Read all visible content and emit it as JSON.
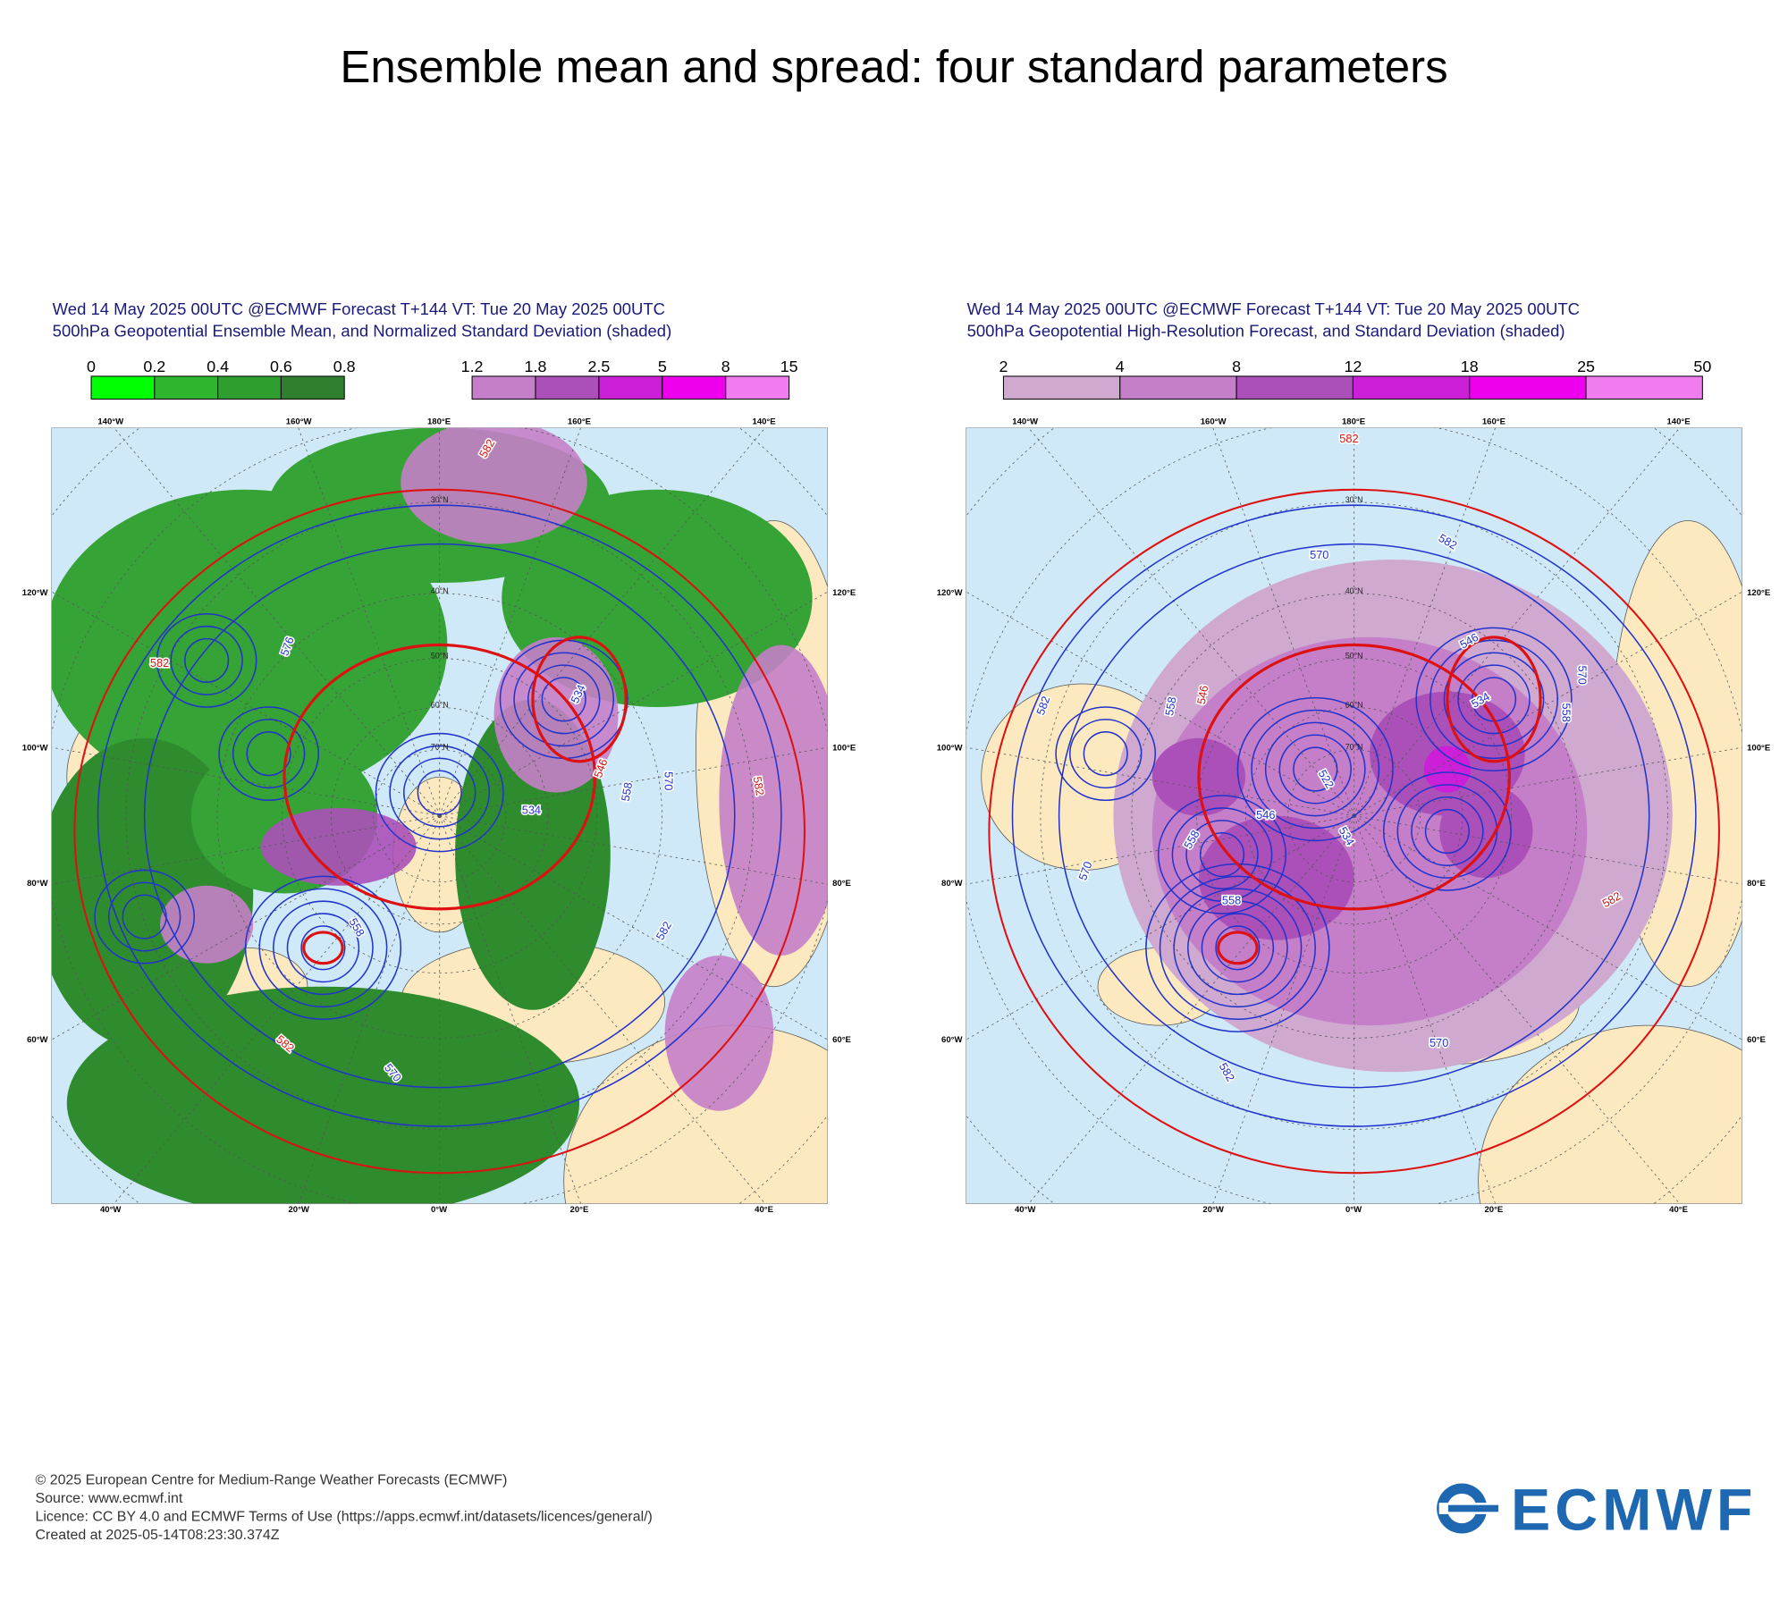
{
  "title": "Ensemble mean and spread: four standard parameters",
  "panels": [
    {
      "header": [
        "Wed 14 May 2025 00UTC @ECMWF Forecast T+144 VT: Tue 20 May 2025 00UTC",
        "500hPa Geopotential Ensemble Mean, and Normalized Standard Deviation (shaded)"
      ],
      "colorbars": [
        {
          "values": [
            0,
            0.2,
            0.4,
            0.6,
            0.8
          ],
          "colors": [
            "#00ff00",
            "#2fb62f",
            "#2e9e2e",
            "#2f7f2f"
          ]
        },
        {
          "values": [
            1.2,
            1.8,
            2.5,
            5,
            8,
            15
          ],
          "colors": [
            "#c47fc8",
            "#ab50b8",
            "#cc20d8",
            "#ee00ee",
            "#f07cf0"
          ]
        }
      ],
      "shading_colors": [
        "#36a336",
        "#2e8b2e",
        "#c47fc8",
        "#ab50b8"
      ],
      "lon_top": [
        "140°W",
        "160°W",
        "180°E",
        "160°E",
        "140°E"
      ],
      "lon_bottom": [
        "40°W",
        "20°W",
        "0°W",
        "20°E",
        "40°E"
      ],
      "lat_left": [
        "120°W",
        "100°W",
        "80°W",
        "60°W"
      ],
      "lat_right": [
        "120°E",
        "100°E",
        "80°E",
        "60°E"
      ],
      "lat_labels": [
        "30°N",
        "40°N",
        "50°N",
        "60°N",
        "70°N"
      ],
      "contour_labels": [
        "582",
        "576",
        "582",
        "534",
        "546",
        "570",
        "558",
        "534",
        "558",
        "582",
        "582",
        "570",
        "582"
      ]
    },
    {
      "header": [
        "Wed 14 May 2025 00UTC @ECMWF Forecast T+144 VT: Tue 20 May 2025 00UTC",
        "500hPa Geopotential High-Resolution Forecast, and Standard Deviation (shaded)"
      ],
      "colorbars": [
        {
          "values": [
            2,
            4,
            8,
            12,
            18,
            25,
            50
          ],
          "colors": [
            "#cfa9d0",
            "#c47fc8",
            "#ab50b8",
            "#cc20d8",
            "#ee00ee",
            "#f07cf0"
          ]
        }
      ],
      "shading_colors": [
        "#cfa9d0",
        "#c47fc8",
        "#ab50b8",
        "#cc20d8"
      ],
      "lon_top": [
        "140°W",
        "160°W",
        "180°E",
        "160°E",
        "140°E"
      ],
      "lon_bottom": [
        "40°W",
        "20°W",
        "0°W",
        "20°E",
        "40°E"
      ],
      "lat_left": [
        "120°W",
        "100°W",
        "80°W",
        "60°W"
      ],
      "lat_right": [
        "120°E",
        "100°E",
        "80°E",
        "60°E"
      ],
      "lat_labels": [
        "30°N",
        "40°N",
        "50°N",
        "60°N",
        "70°N"
      ],
      "contour_labels": [
        "582",
        "582",
        "570",
        "546",
        "534",
        "570",
        "558",
        "582",
        "546",
        "558",
        "522",
        "546",
        "534",
        "558",
        "570",
        "558",
        "570",
        "582",
        "582"
      ]
    }
  ],
  "footer": [
    "© 2025 European Centre for Medium-Range Weather Forecasts (ECMWF)",
    "Source: www.ecmwf.int",
    "Licence: CC BY 4.0 and ECMWF Terms of Use (https://apps.ecmwf.int/datasets/licences/general/)",
    "Created at 2025-05-14T08:23:30.374Z"
  ],
  "logo": "ECMWF"
}
